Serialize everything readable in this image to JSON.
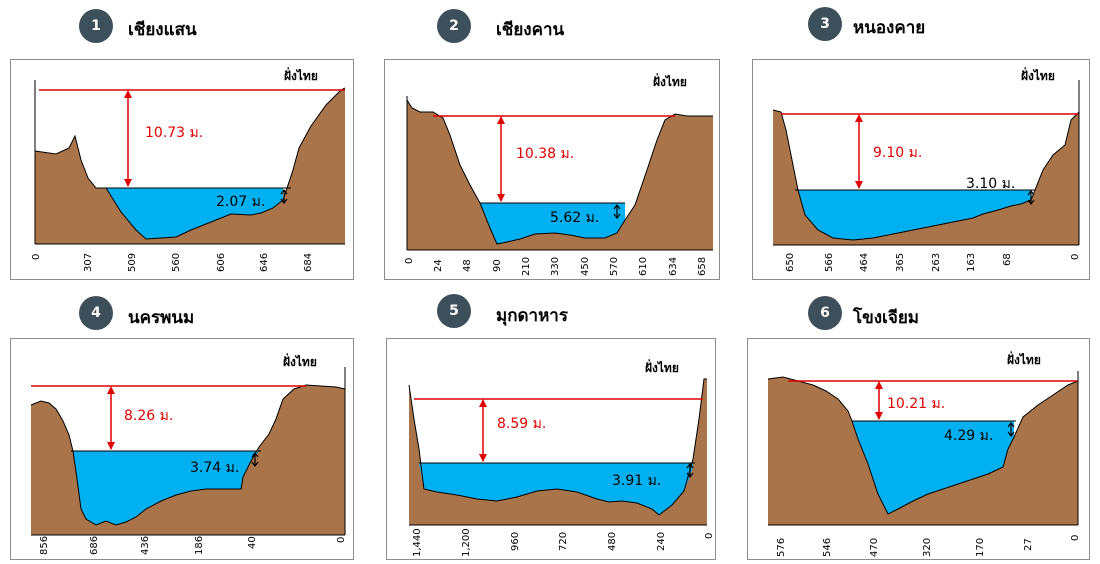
{
  "panels": [
    {
      "number": "1",
      "station": "เชียงแสน",
      "bank_label": "ฝั่งไทย",
      "total_depth": "10.73 ม.",
      "water_depth": "2.07 ม.",
      "ticks": [
        "0",
        "307",
        "509",
        "560",
        "606",
        "646",
        "684"
      ]
    },
    {
      "number": "2",
      "station": "เชียงคาน",
      "bank_label": "ฝั่งไทย",
      "total_depth": "10.38 ม.",
      "water_depth": "5.62 ม.",
      "ticks": [
        "0",
        "24",
        "48",
        "90",
        "210",
        "330",
        "450",
        "570",
        "610",
        "634",
        "658"
      ]
    },
    {
      "number": "3",
      "station": "หนองคาย",
      "bank_label": "ฝั่งไทย",
      "total_depth": "9.10 ม.",
      "water_depth": "3.10 ม.",
      "ticks": [
        "650",
        "566",
        "464",
        "365",
        "263",
        "163",
        "68",
        "0"
      ]
    },
    {
      "number": "4",
      "station": "นครพนม",
      "bank_label": "ฝั่งไทย",
      "total_depth": "8.26 ม.",
      "water_depth": "3.74 ม.",
      "ticks": [
        "856",
        "686",
        "436",
        "186",
        "40",
        "0"
      ]
    },
    {
      "number": "5",
      "station": "มุกดาหาร",
      "bank_label": "ฝั่งไทย",
      "total_depth": "8.59 ม.",
      "water_depth": "3.91 ม.",
      "ticks": [
        "1,440",
        "1,200",
        "960",
        "720",
        "480",
        "240",
        "0"
      ]
    },
    {
      "number": "6",
      "station": "โขงเจียม",
      "bank_label": "ฝั่งไทย",
      "total_depth": "10.21 ม.",
      "water_depth": "4.29 ม.",
      "ticks": [
        "576",
        "546",
        "470",
        "320",
        "170",
        "27",
        "0"
      ]
    }
  ],
  "colors": {
    "badge": "#3e4f5c",
    "water": "#00b0f0",
    "soil": "#a9744a",
    "flood_line": "#e00000",
    "depth_text": "#e00000"
  }
}
